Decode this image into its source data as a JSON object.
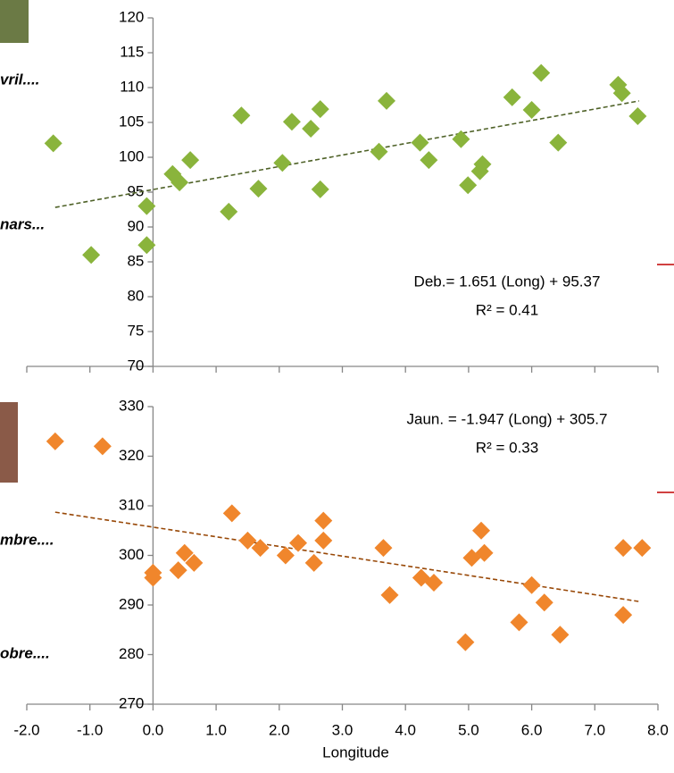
{
  "chart_data": [
    {
      "type": "scatter",
      "color": "#8ab43c",
      "trend_color": "#4f6228",
      "x": [
        -1.58,
        -0.98,
        -0.1,
        -0.1,
        0.31,
        0.42,
        0.59,
        1.2,
        1.4,
        1.67,
        2.05,
        2.2,
        2.5,
        2.65,
        2.65,
        3.58,
        3.7,
        4.23,
        4.37,
        4.88,
        4.99,
        5.18,
        5.22,
        5.69,
        6.0,
        6.15,
        6.42,
        7.37,
        7.43,
        7.68
      ],
      "values": [
        102,
        86,
        93,
        87.4,
        97.6,
        96.4,
        99.6,
        92.2,
        106,
        95.5,
        99.2,
        105.1,
        104.1,
        106.9,
        95.4,
        100.8,
        108.1,
        102.1,
        99.6,
        102.6,
        96,
        98,
        99,
        108.6,
        106.8,
        112.1,
        102.1,
        110.4,
        109.2,
        105.9
      ],
      "trendline": {
        "slope": 1.651,
        "intercept": 95.37,
        "x": [
          -1.55,
          7.7
        ]
      },
      "equation": "Deb.= 1.651 (Long) + 95.37",
      "r2": "R² = 0.41",
      "annotations": [
        "vril....",
        "nars..."
      ],
      "xlim": [
        -2,
        8
      ],
      "ylim": [
        70,
        120
      ],
      "xticks": [
        -2,
        -1,
        0,
        1,
        2,
        3,
        4,
        5,
        6,
        7,
        8
      ],
      "yticks": [
        70,
        75,
        80,
        85,
        90,
        95,
        100,
        105,
        110,
        115,
        120
      ]
    },
    {
      "type": "scatter",
      "color": "#f0862c",
      "trend_color": "#984807",
      "x": [
        -1.55,
        -0.8,
        0,
        0,
        0.4,
        0.5,
        0.65,
        1.25,
        1.5,
        1.7,
        2.1,
        2.3,
        2.55,
        2.7,
        2.7,
        3.65,
        3.75,
        4.25,
        4.45,
        4.95,
        5.05,
        5.2,
        5.25,
        5.8,
        6.0,
        6.2,
        6.45,
        7.45,
        7.45,
        7.75
      ],
      "values": [
        323,
        322,
        296.5,
        295.5,
        297,
        300.5,
        298.5,
        308.5,
        303,
        301.5,
        300,
        302.5,
        298.5,
        307,
        303,
        301.5,
        292,
        295.5,
        294.5,
        282.5,
        299.5,
        305,
        300.5,
        286.5,
        294,
        290.5,
        284,
        301.5,
        288,
        301.5
      ],
      "trendline": {
        "slope": -1.947,
        "intercept": 305.7,
        "x": [
          -1.55,
          7.7
        ]
      },
      "equation": "Jaun. = -1.947 (Long) + 305.7",
      "r2": "R² = 0.33",
      "annotations": [
        "mbre....",
        "obre...."
      ],
      "x_label": "Longitude",
      "xlim": [
        -2,
        8
      ],
      "ylim": [
        270,
        330
      ],
      "xticks": [
        {
          "value": -2,
          "label": "-2.0"
        },
        {
          "value": -1,
          "label": "-1.0"
        },
        {
          "value": 0,
          "label": "0.0"
        },
        {
          "value": 1,
          "label": "1.0"
        },
        {
          "value": 2,
          "label": "2.0"
        },
        {
          "value": 3,
          "label": "3.0"
        },
        {
          "value": 4,
          "label": "4.0"
        },
        {
          "value": 5,
          "label": "5.0"
        },
        {
          "value": 6,
          "label": "6.0"
        },
        {
          "value": 7,
          "label": "7.0"
        },
        {
          "value": 8,
          "label": "8.0"
        }
      ],
      "yticks": [
        270,
        280,
        290,
        300,
        310,
        320,
        330
      ]
    }
  ]
}
